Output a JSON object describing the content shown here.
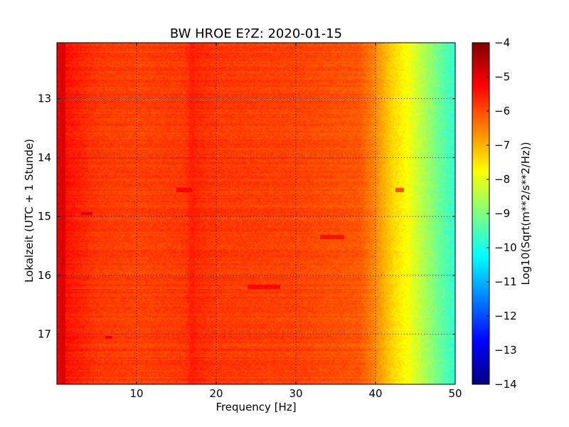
{
  "chart_data": {
    "type": "heatmap",
    "title": "BW HROE E?Z: 2020-01-15",
    "xlabel": "Frequency [Hz]",
    "ylabel": "Lokalzeit (UTC + 1 Stunde)",
    "colorbar_label": "Log10(Sqrt(m**2/s**2/Hz))",
    "xlim": [
      0,
      50
    ],
    "ylim": [
      12.05,
      17.85
    ],
    "y_inverted": true,
    "x_ticks": [
      10,
      20,
      30,
      40,
      50
    ],
    "y_ticks": [
      13,
      14,
      15,
      16,
      17
    ],
    "colorbar_range": [
      -14,
      -4
    ],
    "colorbar_ticks": [
      -4,
      -5,
      -6,
      -7,
      -8,
      -9,
      -10,
      -11,
      -12,
      -13,
      -14
    ],
    "grid": true,
    "colormap": "jet",
    "spectrum_profile": {
      "frequency_hz": [
        0,
        1,
        5,
        10,
        16,
        17,
        20,
        30,
        38,
        40,
        42,
        44,
        46,
        48,
        50
      ],
      "log10_amplitude": [
        -5.0,
        -5.4,
        -5.8,
        -5.9,
        -5.8,
        -5.6,
        -5.8,
        -5.9,
        -6.1,
        -6.6,
        -7.3,
        -7.8,
        -8.5,
        -9.2,
        -9.8
      ]
    },
    "features": [
      {
        "type": "vertical_band",
        "frequency_hz": 17,
        "log10_amplitude": -5.6
      },
      {
        "type": "vertical_band",
        "frequency_hz": 0.7,
        "log10_amplitude": -4.9
      },
      {
        "type": "burst",
        "time": 14.55,
        "frequency_range_hz": [
          15,
          17
        ],
        "log10_amplitude": -5.2
      },
      {
        "type": "burst",
        "time": 14.55,
        "frequency_range_hz": [
          42.5,
          43.5
        ],
        "log10_amplitude": -6.0
      },
      {
        "type": "burst",
        "time": 14.95,
        "frequency_range_hz": [
          3,
          4.5
        ],
        "log10_amplitude": -4.9
      },
      {
        "type": "burst",
        "time": 15.35,
        "frequency_range_hz": [
          33,
          36
        ],
        "log10_amplitude": -5.4
      },
      {
        "type": "burst",
        "time": 16.2,
        "frequency_range_hz": [
          24,
          28
        ],
        "log10_amplitude": -5.3
      },
      {
        "type": "burst",
        "time": 17.05,
        "frequency_range_hz": [
          6,
          7
        ],
        "log10_amplitude": -5.0
      }
    ]
  }
}
